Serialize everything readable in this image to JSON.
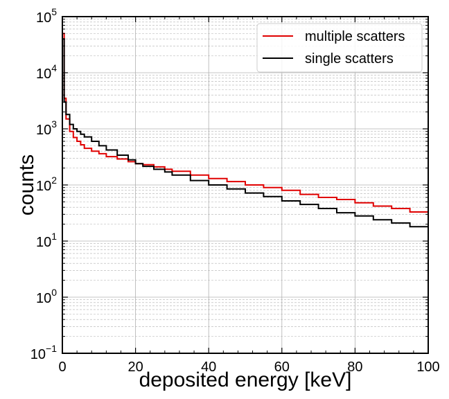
{
  "chart_data": {
    "type": "line",
    "title": "",
    "xlabel": "deposited energy [keV]",
    "ylabel": "counts",
    "xlim": [
      0,
      100
    ],
    "ylim": [
      0.1,
      100000
    ],
    "yscale": "log",
    "x_ticks": [
      0,
      20,
      40,
      60,
      80,
      100
    ],
    "x_tick_labels": [
      "0",
      "20",
      "40",
      "60",
      "80",
      "100"
    ],
    "y_ticks": [
      {
        "base": "10",
        "exp": "5"
      },
      {
        "base": "10",
        "exp": "4"
      },
      {
        "base": "10",
        "exp": "3"
      },
      {
        "base": "10",
        "exp": "2"
      },
      {
        "base": "10",
        "exp": "1"
      },
      {
        "base": "10",
        "exp": "0"
      },
      {
        "base": "10",
        "exp": "−1"
      }
    ],
    "grid": true,
    "legend_position": "top-right",
    "series": [
      {
        "name": "multiple scatters",
        "color": "#e00000",
        "style": "step",
        "x": [
          0,
          0.5,
          1,
          2,
          3,
          4,
          5,
          6,
          8,
          10,
          12,
          15,
          18,
          20,
          22,
          25,
          28,
          30,
          35,
          40,
          45,
          50,
          55,
          60,
          65,
          70,
          75,
          80,
          85,
          90,
          95,
          100
        ],
        "y": [
          50000,
          3500,
          1500,
          900,
          700,
          600,
          520,
          450,
          400,
          360,
          320,
          290,
          260,
          240,
          230,
          210,
          190,
          175,
          150,
          130,
          115,
          100,
          90,
          80,
          68,
          60,
          55,
          48,
          42,
          38,
          33,
          30
        ]
      },
      {
        "name": "single scatters",
        "color": "#000000",
        "style": "step",
        "x": [
          0,
          0.5,
          1,
          2,
          3,
          4,
          5,
          6,
          8,
          10,
          12,
          15,
          18,
          20,
          22,
          25,
          28,
          30,
          35,
          40,
          45,
          50,
          55,
          60,
          65,
          70,
          75,
          80,
          85,
          90,
          95,
          100
        ],
        "y": [
          40000,
          3000,
          1800,
          1200,
          1000,
          900,
          800,
          720,
          600,
          500,
          420,
          340,
          280,
          240,
          215,
          190,
          170,
          150,
          120,
          100,
          85,
          72,
          62,
          52,
          45,
          38,
          32,
          28,
          24,
          21,
          18,
          17
        ]
      }
    ]
  }
}
